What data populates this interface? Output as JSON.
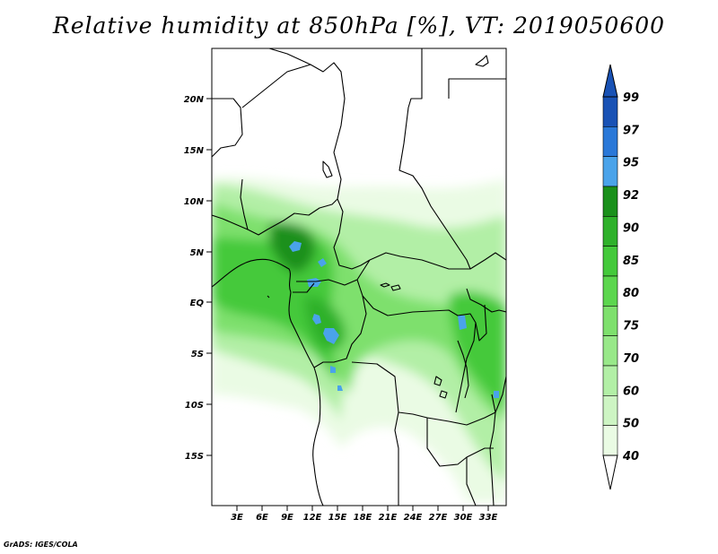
{
  "title": "Relative humidity at 850hPa [%], VT: 2019050600",
  "credit": "GrADS: IGES/COLA",
  "lat_labels": [
    "20N",
    "15N",
    "10N",
    "5N",
    "EQ",
    "5S",
    "10S",
    "15S"
  ],
  "lon_labels": [
    "3E",
    "6E",
    "9E",
    "12E",
    "15E",
    "18E",
    "21E",
    "24E",
    "27E",
    "30E",
    "33E"
  ],
  "colorbar": {
    "labels": [
      "40",
      "50",
      "60",
      "70",
      "75",
      "80",
      "85",
      "90",
      "92",
      "95",
      "97",
      "99"
    ],
    "colors": [
      "#eafbe4",
      "#cdf4c3",
      "#b2efa6",
      "#98e889",
      "#7ee06d",
      "#5cd64e",
      "#44c93b",
      "#2fb12b",
      "#1a901b",
      "#4aa3ea",
      "#2a78d8",
      "#1952b5"
    ]
  }
}
